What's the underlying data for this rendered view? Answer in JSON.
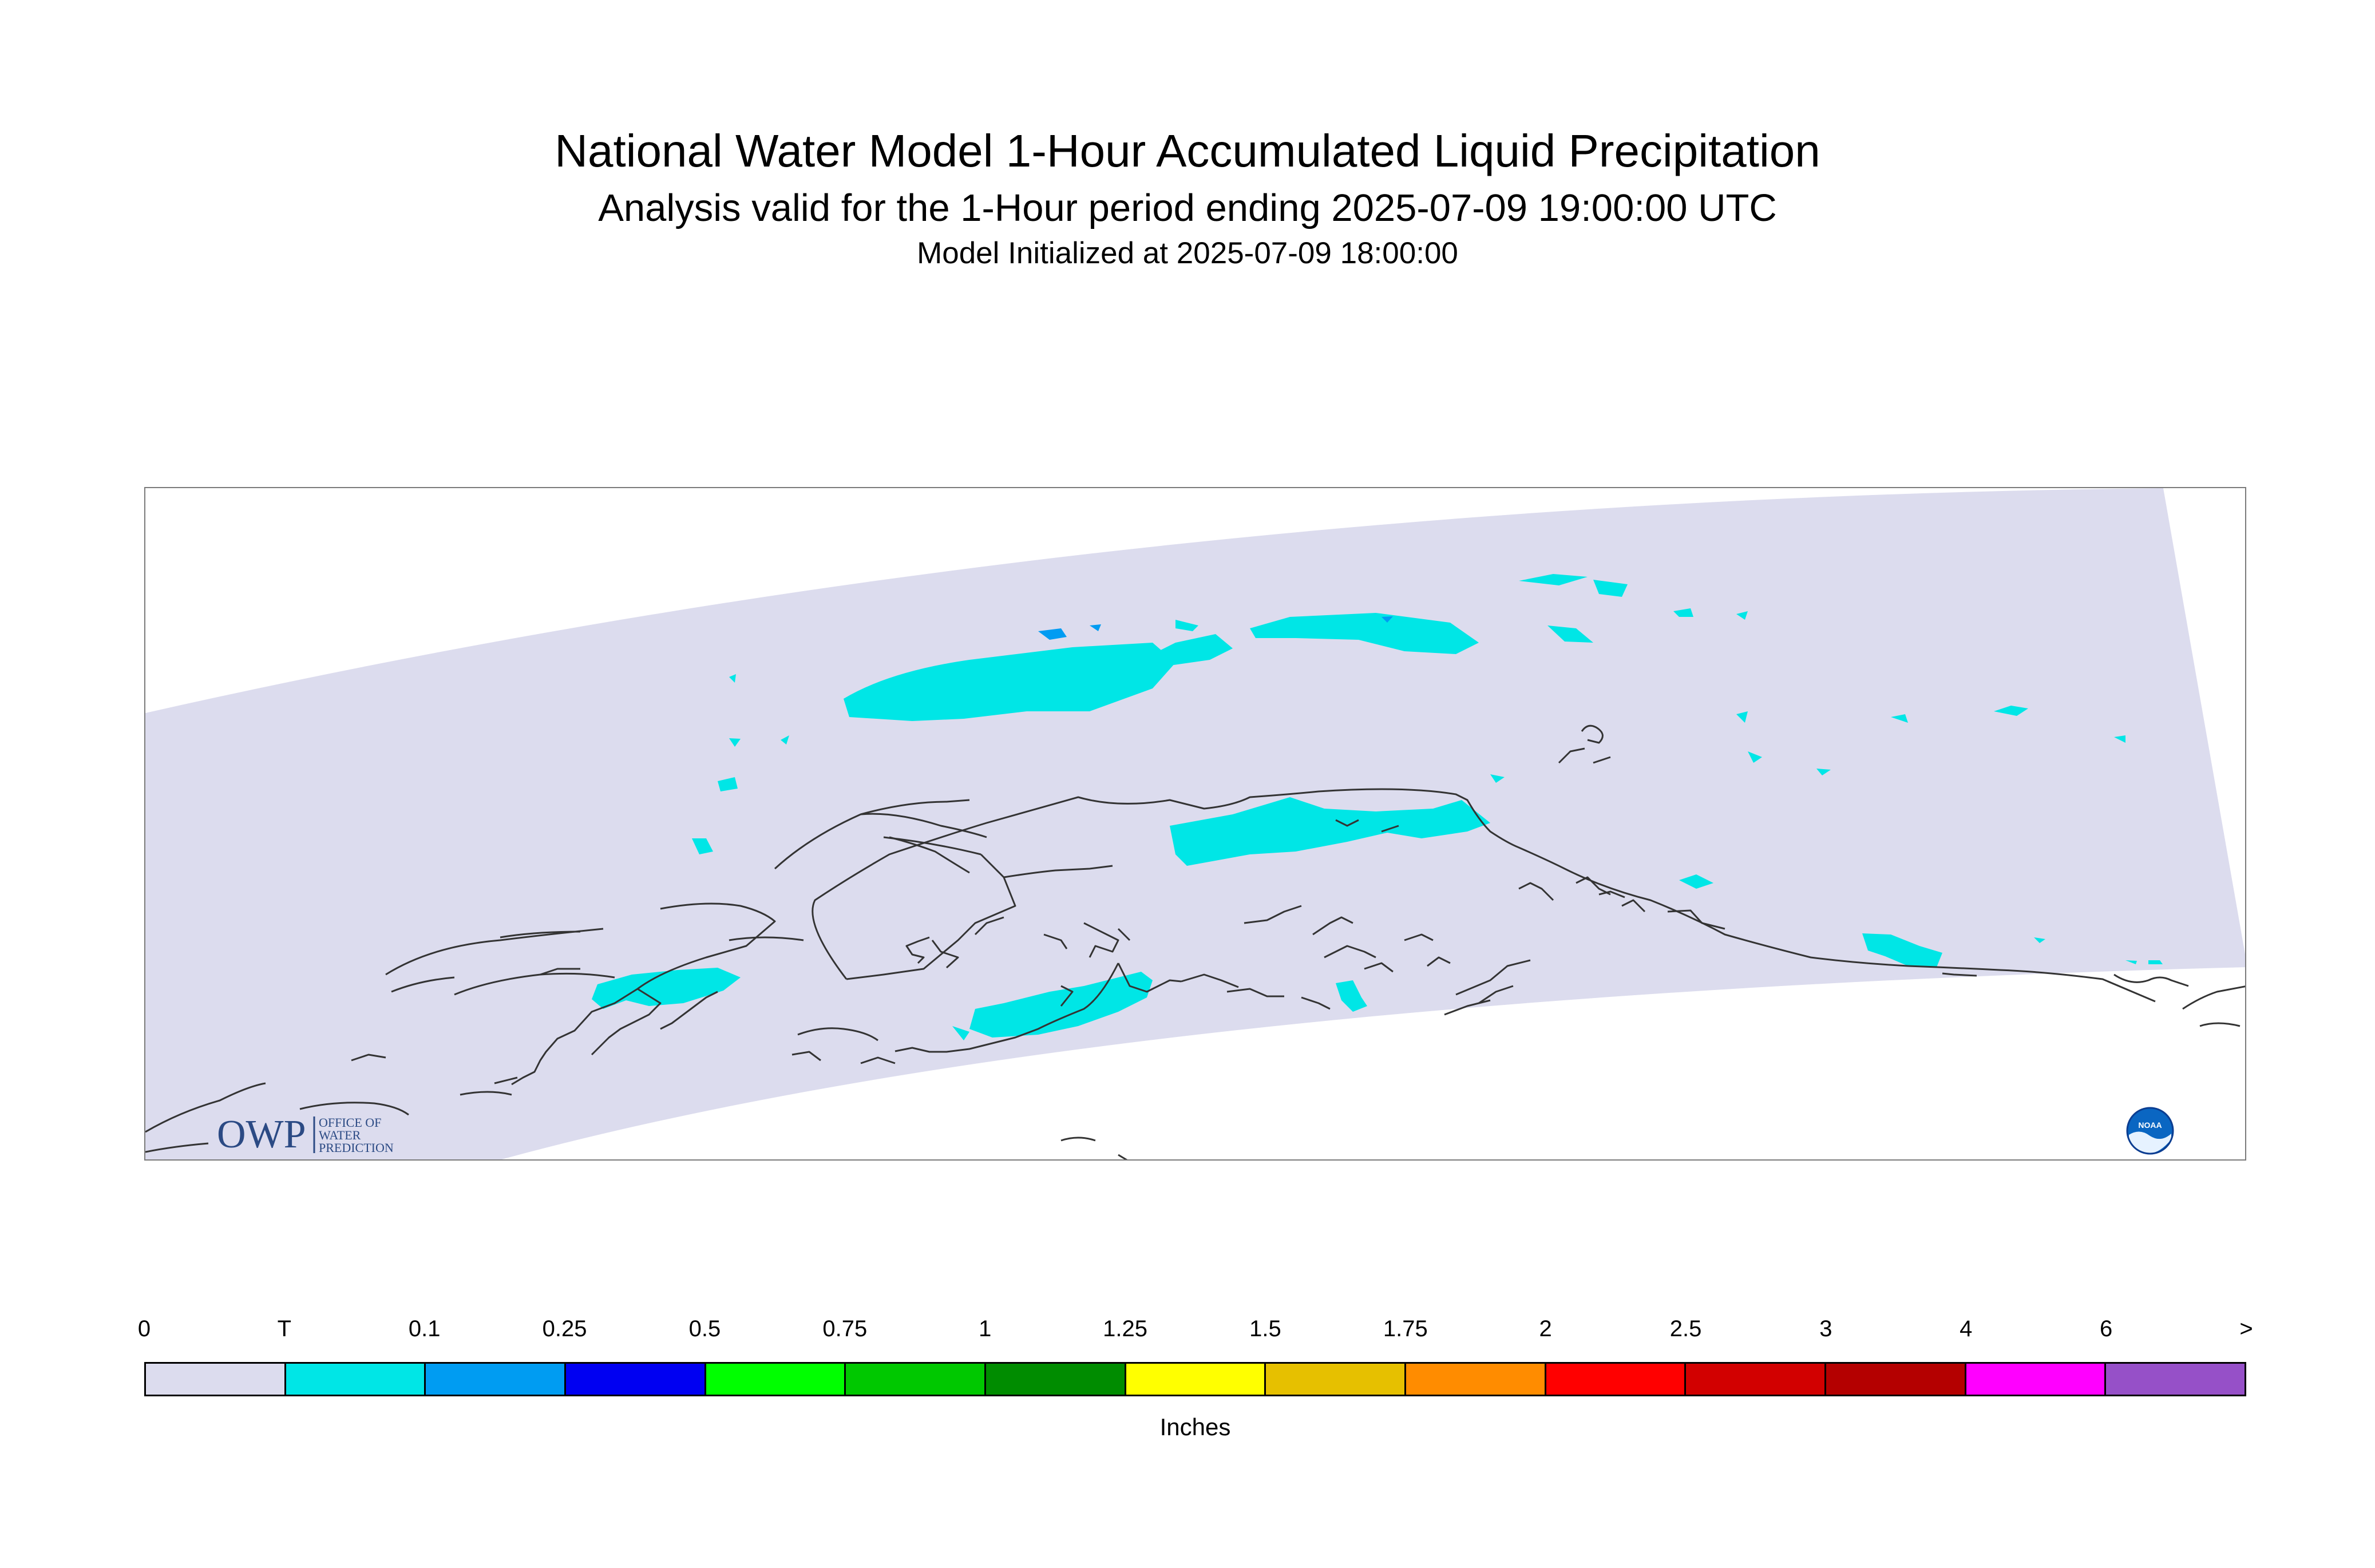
{
  "title": {
    "line1": "National Water Model 1-Hour Accumulated Liquid Precipitation",
    "line2": "Analysis valid for the 1-Hour period ending 2025-07-09 19:00:00 UTC",
    "line3": "Model Initialized at 2025-07-09 18:00:00"
  },
  "logos": {
    "owp_mark": "OWP",
    "owp_text": [
      "OFFICE OF",
      "WATER",
      "PREDICTION"
    ],
    "noaa_mark": "NOAA"
  },
  "colors": {
    "domain_fill": "#dcdcee",
    "light_precip": "#00e6e6",
    "medium_precip": "#009cf2",
    "coastline": "#333333"
  },
  "legend": {
    "units": "Inches",
    "ticks": [
      "0",
      "T",
      "0.1",
      "0.25",
      "0.5",
      "0.75",
      "1",
      "1.25",
      "1.5",
      "1.75",
      "2",
      "2.5",
      "3",
      "4",
      "6",
      ">"
    ],
    "colors": [
      "#dcdcee",
      "#00e6e6",
      "#009cf2",
      "#0000f2",
      "#00ff00",
      "#00c800",
      "#008c00",
      "#ffff00",
      "#e6c000",
      "#ff8c00",
      "#ff0000",
      "#d20000",
      "#b40000",
      "#ff00ff",
      "#9650c8"
    ]
  }
}
